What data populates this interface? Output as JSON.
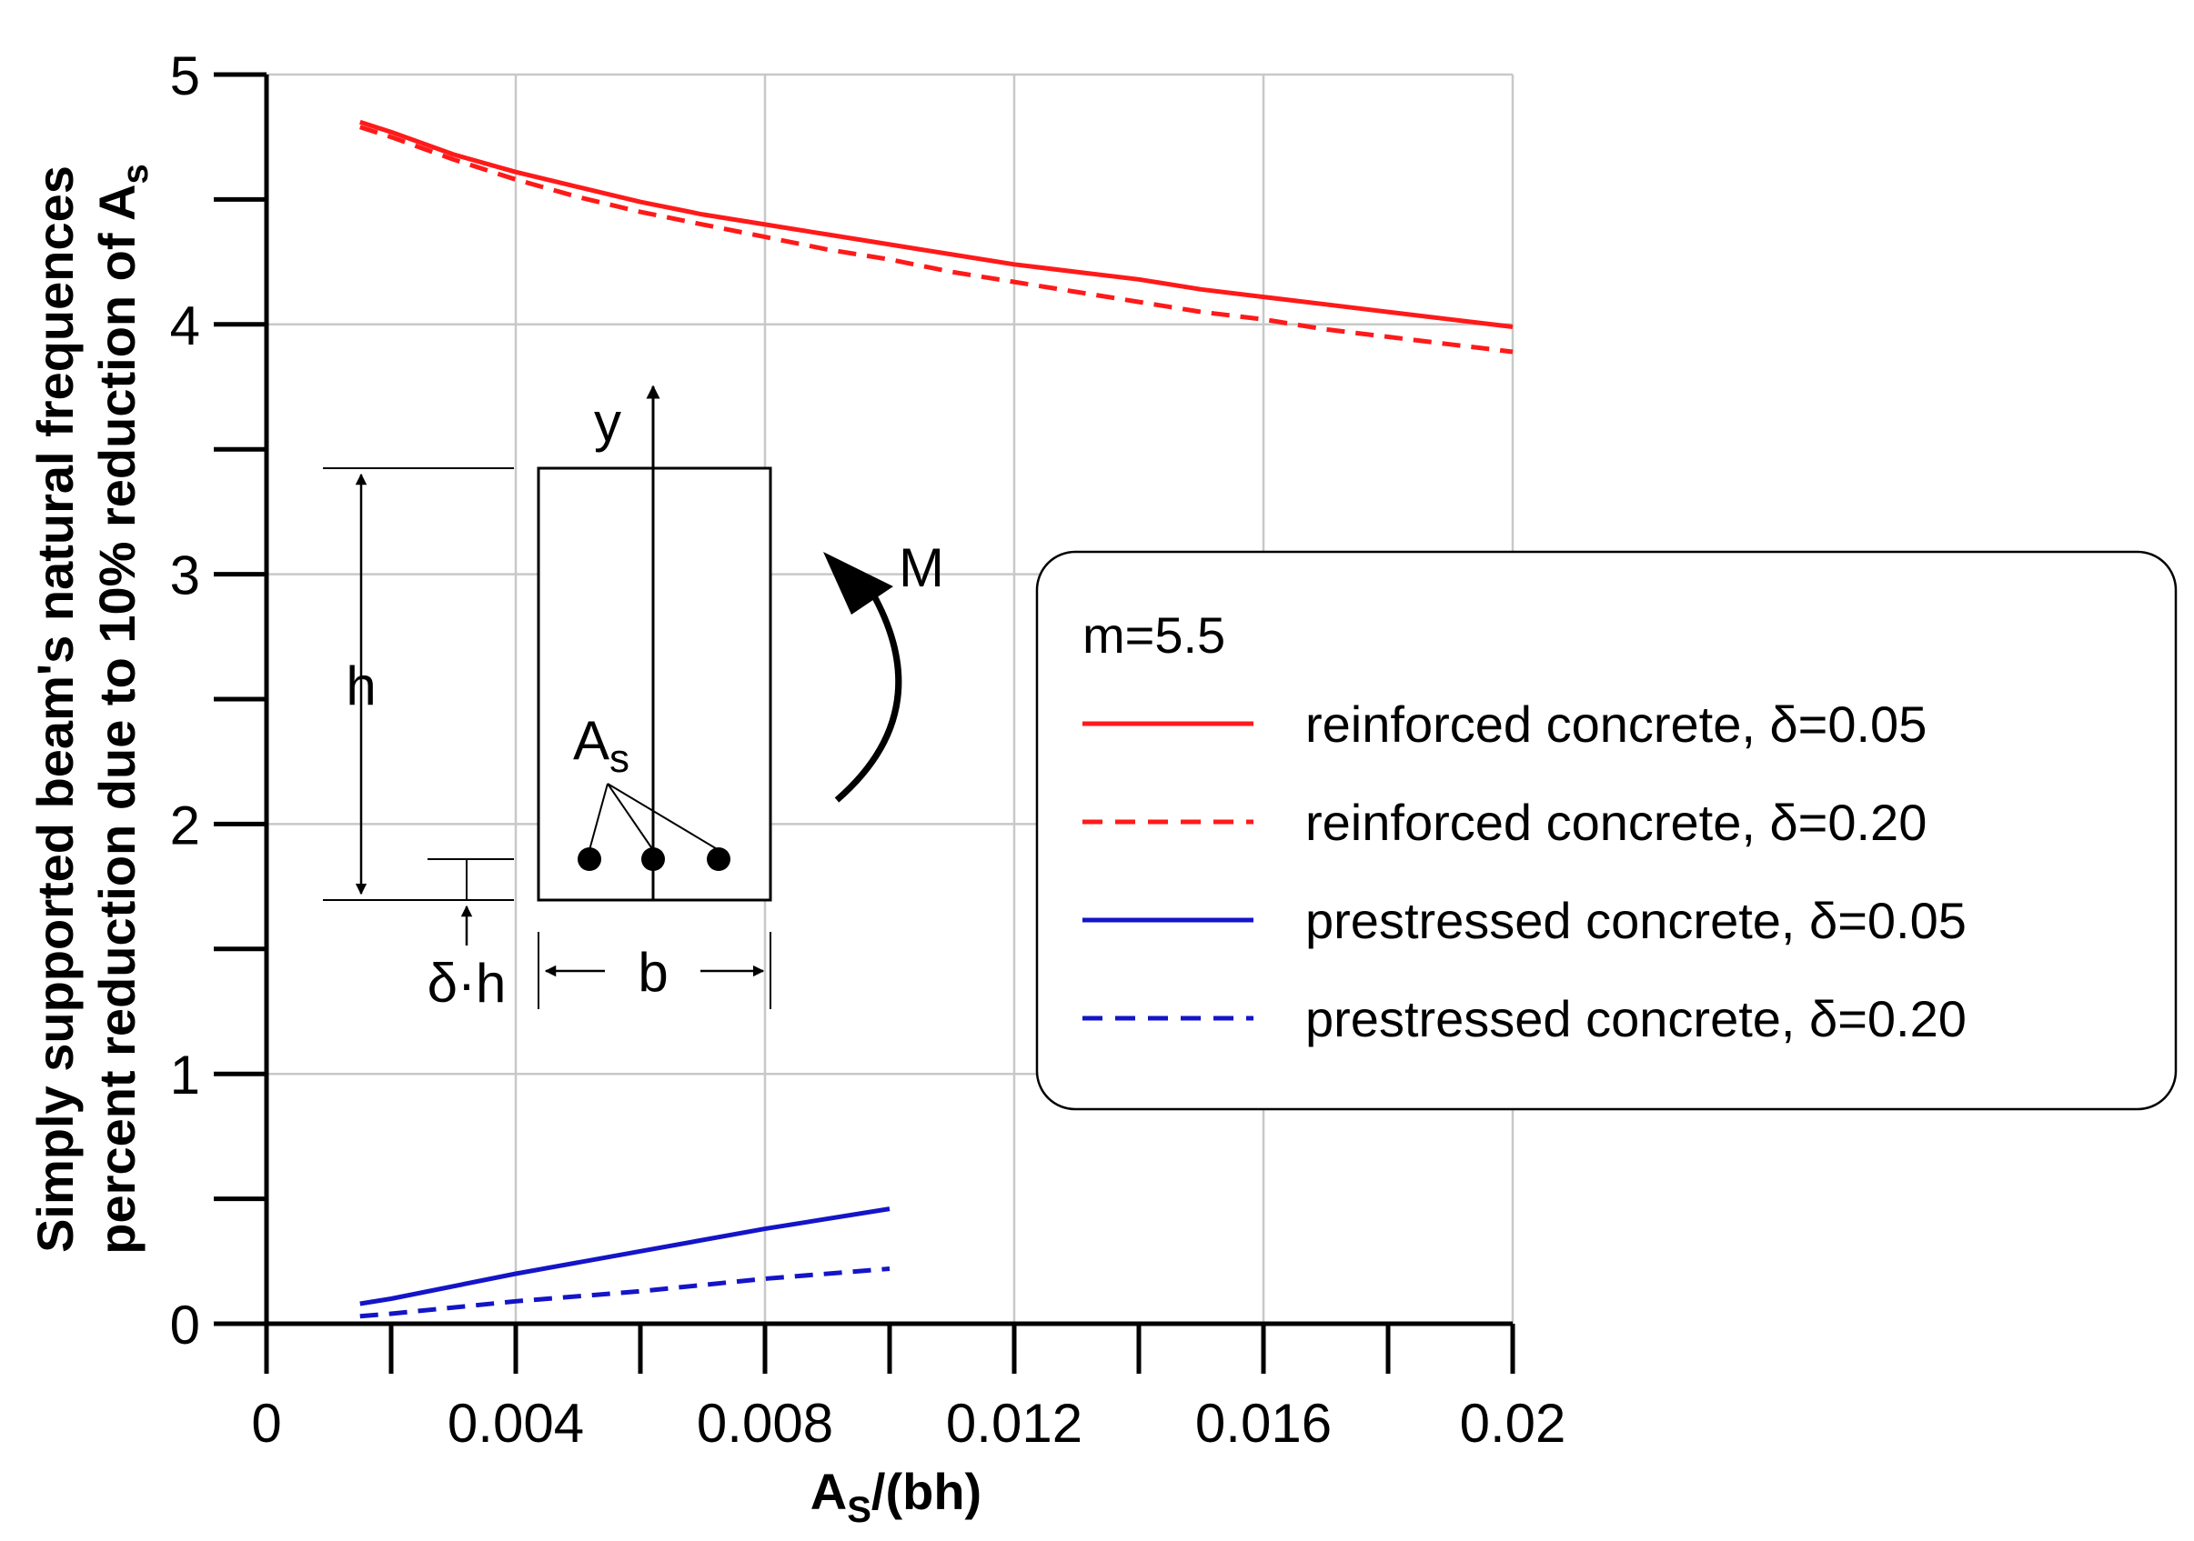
{
  "chart_data": {
    "type": "line",
    "xlabel_main": "A",
    "xlabel_sub": "S",
    "xlabel_rest": "/(bh)",
    "ylabel_line1": "Simply supported beam's natural frequences",
    "ylabel_line2_main": "percent reduction due to 10% reduction of A",
    "ylabel_line2_sub": "s",
    "xlim": [
      0,
      0.02
    ],
    "ylim": [
      0,
      5
    ],
    "x_ticks": [
      0,
      0.004,
      0.008,
      0.012,
      0.016,
      0.02
    ],
    "x_tick_labels": [
      "0",
      "0.004",
      "0.008",
      "0.012",
      "0.016",
      "0.02"
    ],
    "x_minor_ticks": [
      0.002,
      0.006,
      0.01,
      0.014,
      0.018
    ],
    "y_ticks": [
      0,
      1,
      2,
      3,
      4,
      5
    ],
    "y_tick_labels": [
      "0",
      "1",
      "2",
      "3",
      "4",
      "5"
    ],
    "y_minor_ticks": [
      0.5,
      1.5,
      2.5,
      3.5,
      4.5
    ],
    "grid": true,
    "legend": {
      "title": "m=5.5",
      "placement": "center-right"
    },
    "series": [
      {
        "name": "reinforced concrete, δ=0.05",
        "color": "#ff1a1a",
        "style": "solid",
        "x": [
          0.0015,
          0.002,
          0.003,
          0.004,
          0.005,
          0.006,
          0.007,
          0.008,
          0.009,
          0.01,
          0.011,
          0.012,
          0.013,
          0.014,
          0.015,
          0.016,
          0.017,
          0.018,
          0.019,
          0.02
        ],
        "y": [
          4.81,
          4.77,
          4.68,
          4.61,
          4.55,
          4.49,
          4.44,
          4.4,
          4.36,
          4.32,
          4.28,
          4.24,
          4.21,
          4.18,
          4.14,
          4.11,
          4.08,
          4.05,
          4.02,
          3.99
        ]
      },
      {
        "name": "reinforced concrete, δ=0.20",
        "color": "#ff1a1a",
        "style": "dashed",
        "x": [
          0.0015,
          0.002,
          0.003,
          0.004,
          0.005,
          0.006,
          0.007,
          0.008,
          0.009,
          0.01,
          0.011,
          0.012,
          0.013,
          0.014,
          0.015,
          0.016,
          0.017,
          0.018,
          0.019,
          0.02
        ],
        "y": [
          4.79,
          4.75,
          4.66,
          4.58,
          4.51,
          4.45,
          4.4,
          4.35,
          4.3,
          4.26,
          4.21,
          4.17,
          4.13,
          4.09,
          4.05,
          4.02,
          3.98,
          3.95,
          3.92,
          3.89
        ]
      },
      {
        "name": "prestressed concrete, δ=0.05",
        "color": "#1414c8",
        "style": "solid",
        "x": [
          0.0015,
          0.002,
          0.004,
          0.006,
          0.008,
          0.01
        ],
        "y": [
          0.08,
          0.1,
          0.2,
          0.29,
          0.38,
          0.46
        ]
      },
      {
        "name": "prestressed concrete, δ=0.20",
        "color": "#1414c8",
        "style": "dashed",
        "x": [
          0.0015,
          0.002,
          0.004,
          0.006,
          0.008,
          0.01
        ],
        "y": [
          0.03,
          0.04,
          0.09,
          0.13,
          0.18,
          0.22
        ]
      }
    ],
    "annotations": {
      "y_label": "y",
      "h_label": "h",
      "b_label": "b",
      "delta_h_label": "δ·h",
      "as_main": "A",
      "as_sub": "s",
      "moment_label": "M"
    }
  }
}
